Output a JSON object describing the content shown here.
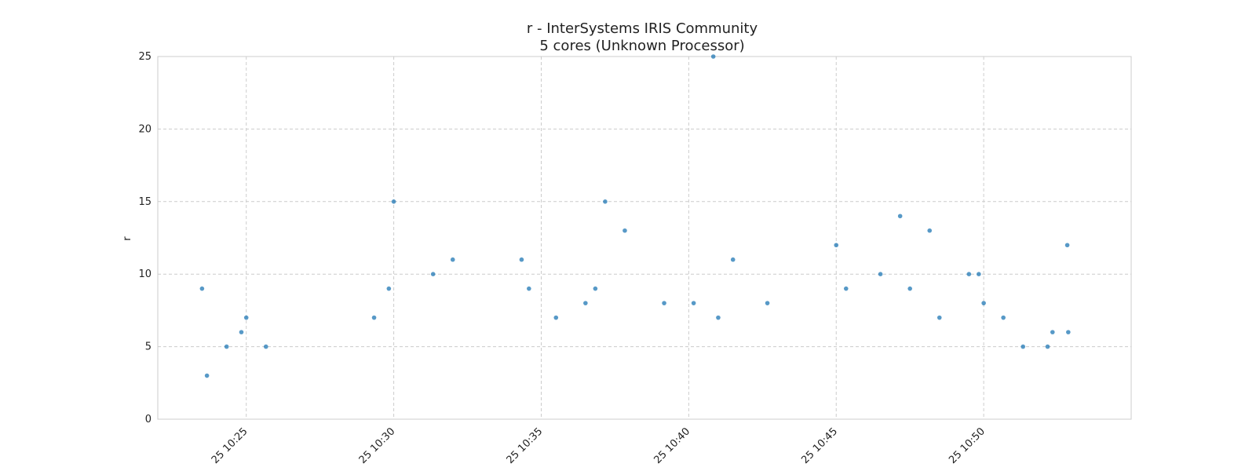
{
  "chart_data": {
    "type": "scatter",
    "title": "r - InterSystems IRIS Community",
    "subtitle": "5 cores (Unknown Processor)",
    "xlabel": "",
    "ylabel": "r",
    "ylim": [
      0,
      25
    ],
    "xlim": [
      "10:22:00",
      "10:55:00"
    ],
    "yticks": [
      0,
      5,
      10,
      15,
      20,
      25
    ],
    "xticks": [
      "10:25:00",
      "10:30:00",
      "10:35:00",
      "10:40:00",
      "10:45:00",
      "10:50:00"
    ],
    "xtick_labels": [
      "25 10:25",
      "25 10:30",
      "25 10:35",
      "25 10:40",
      "25 10:45",
      "25 10:50"
    ],
    "grid": true,
    "color": "#1f77b4",
    "series": [
      {
        "x": [
          "10:23:30",
          "10:23:40",
          "10:24:20",
          "10:24:50",
          "10:25:00",
          "10:25:40",
          "10:29:20",
          "10:29:50",
          "10:30:00",
          "10:31:20",
          "10:32:00",
          "10:34:20",
          "10:34:35",
          "10:35:30",
          "10:36:30",
          "10:36:50",
          "10:37:10",
          "10:37:50",
          "10:39:10",
          "10:40:10",
          "10:40:50",
          "10:41:00",
          "10:41:30",
          "10:42:40",
          "10:45:00",
          "10:45:20",
          "10:46:30",
          "10:47:10",
          "10:47:30",
          "10:48:10",
          "10:48:30",
          "10:49:30",
          "10:49:50",
          "10:50:00",
          "10:50:40",
          "10:51:20",
          "10:52:10",
          "10:52:20",
          "10:52:50",
          "10:52:52"
        ],
        "y": [
          9,
          3,
          5,
          6,
          7,
          5,
          7,
          9,
          15,
          10,
          11,
          11,
          9,
          7,
          8,
          9,
          15,
          13,
          8,
          8,
          25,
          7,
          11,
          8,
          12,
          9,
          10,
          14,
          9,
          13,
          7,
          10,
          10,
          8,
          7,
          5,
          5,
          6,
          12,
          6
        ]
      }
    ]
  }
}
